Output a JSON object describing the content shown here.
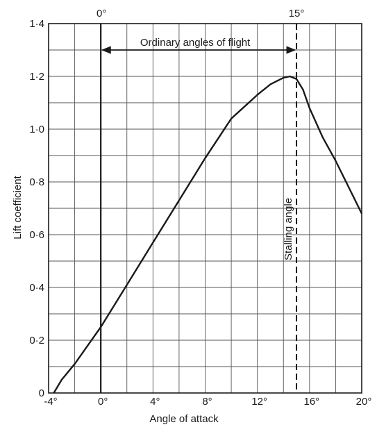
{
  "chart_data": {
    "type": "line",
    "title": "",
    "xlabel": "Angle of attack",
    "ylabel": "Lift coefficient",
    "xlim": [
      -4,
      20
    ],
    "ylim": [
      0,
      1.4
    ],
    "grid": true,
    "x_ticks": [
      "-4°",
      "0°",
      "4°",
      "8°",
      "12°",
      "16°",
      "20°"
    ],
    "y_ticks": [
      "0",
      "0·2",
      "0·4",
      "0·6",
      "0·8",
      "1·0",
      "1·2",
      "1·4"
    ],
    "series": [
      {
        "x": [
          -3.6,
          -3.0,
          -2.0,
          -1.0,
          0.0,
          1.0,
          2.0,
          4.0,
          6.0,
          8.0,
          10.0,
          12.0,
          13.0,
          14.0,
          14.5,
          15.0,
          15.5,
          16.0,
          17.0,
          18.0,
          19.0,
          20.0
        ],
        "y": [
          0.0,
          0.05,
          0.11,
          0.18,
          0.25,
          0.33,
          0.41,
          0.57,
          0.73,
          0.89,
          1.04,
          1.13,
          1.17,
          1.195,
          1.2,
          1.19,
          1.15,
          1.08,
          0.97,
          0.88,
          0.78,
          0.68
        ]
      }
    ],
    "annotations": {
      "top_zero_label": "0°",
      "top_stall_label": "15°",
      "range_label": "Ordinary angles of flight",
      "stall_label": "Stalling angle",
      "zero_angle": 0,
      "stall_angle": 15
    }
  }
}
